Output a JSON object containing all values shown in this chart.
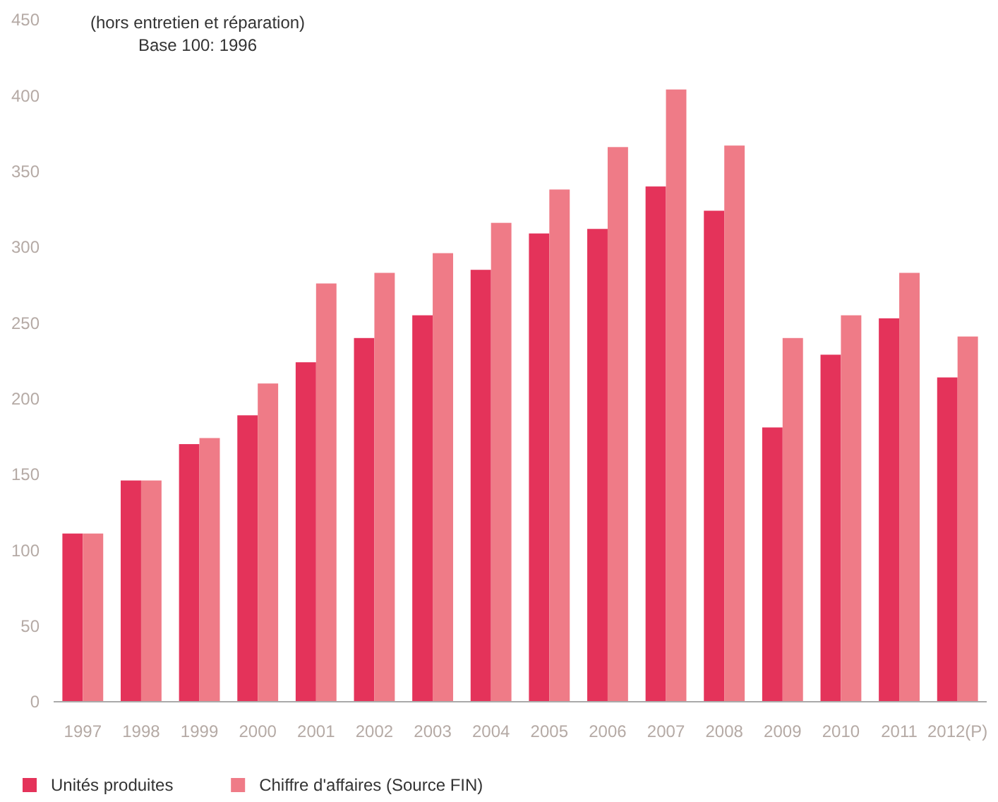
{
  "chart_data": {
    "type": "bar",
    "annotations": [
      "(hors entretien et réparation)",
      "Base 100: 1996"
    ],
    "categories": [
      "1997",
      "1998",
      "1999",
      "2000",
      "2001",
      "2002",
      "2003",
      "2004",
      "2005",
      "2006",
      "2007",
      "2008",
      "2009",
      "2010",
      "2011",
      "2012(P)"
    ],
    "series": [
      {
        "name": "Unités produites",
        "color": "#e4335a",
        "values": [
          111,
          146,
          170,
          189,
          224,
          240,
          255,
          285,
          309,
          312,
          340,
          324,
          181,
          229,
          253,
          214
        ]
      },
      {
        "name": "Chiffre d'affaires (Source FIN)",
        "color": "#ef7b87",
        "values": [
          111,
          146,
          174,
          210,
          276,
          283,
          296,
          316,
          338,
          366,
          404,
          367,
          240,
          255,
          283,
          241
        ]
      }
    ],
    "ylim": [
      0,
      450
    ],
    "yticks": [
      0,
      50,
      100,
      150,
      200,
      250,
      300,
      350,
      400,
      450
    ],
    "grid": false,
    "legend": "bottom left"
  }
}
